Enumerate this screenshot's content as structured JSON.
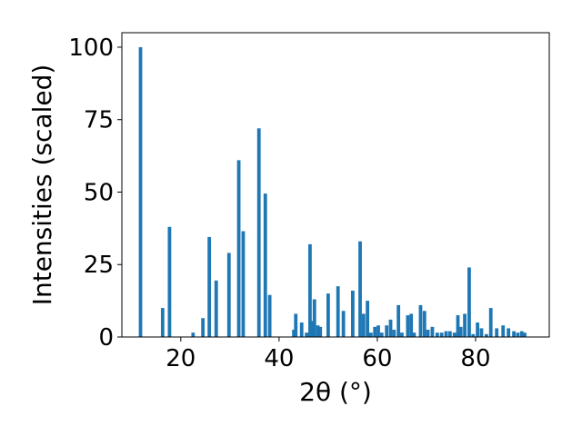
{
  "chart_data": {
    "type": "bar",
    "xlabel": "2θ (°)",
    "ylabel": "Intensities (scaled)",
    "xlim": [
      8,
      95
    ],
    "ylim": [
      0,
      105
    ],
    "xticks": [
      20,
      40,
      60,
      80
    ],
    "yticks": [
      0,
      25,
      50,
      75,
      100
    ],
    "grid": false,
    "bar_color": "#1f77b4",
    "series": [
      {
        "x": [
          11.8,
          16.3,
          17.7,
          22.5,
          24.5,
          25.8,
          27.2,
          29.8,
          31.8,
          32.7,
          35.9,
          37.2,
          38.1,
          43.0,
          43.4,
          44.6,
          45.6,
          46.3,
          46.7,
          47.2,
          47.9,
          48.4,
          50.0,
          52.0,
          53.1,
          55.0,
          56.5,
          57.2,
          58.0,
          58.7,
          59.5,
          60.2,
          60.9,
          61.9,
          62.7,
          63.4,
          64.3,
          65.0,
          66.2,
          66.9,
          67.5,
          68.8,
          69.6,
          70.3,
          71.2,
          72.2,
          73.1,
          74.0,
          74.8,
          75.7,
          76.4,
          77.0,
          77.8,
          78.7,
          79.5,
          80.4,
          81.2,
          82.2,
          83.1,
          84.3,
          85.6,
          86.7,
          87.8,
          88.6,
          89.4,
          90.0
        ],
        "values": [
          100,
          10,
          38,
          1.5,
          6.5,
          34.5,
          19.5,
          29,
          61,
          36.5,
          72,
          49.5,
          14.5,
          2.5,
          8,
          5,
          1.5,
          32,
          5.5,
          13,
          4,
          3.5,
          15,
          17.5,
          9,
          16,
          33,
          8,
          12.5,
          1.5,
          3.5,
          4,
          1.5,
          4,
          6,
          2.5,
          11,
          1.5,
          7.5,
          8,
          1.5,
          11,
          9,
          2.5,
          3.5,
          1.5,
          1.5,
          2,
          2,
          1.5,
          7.5,
          3.5,
          8,
          24,
          1,
          5,
          3,
          1,
          10,
          3,
          4,
          3,
          2,
          1.5,
          2,
          1.5
        ]
      }
    ]
  }
}
